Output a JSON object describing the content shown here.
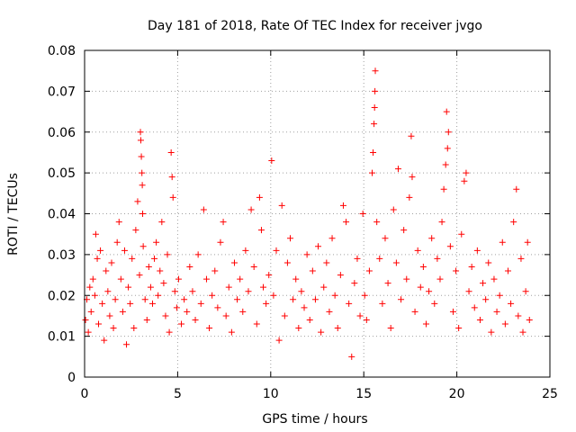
{
  "chart_data": {
    "type": "scatter",
    "title": "Day 181 of 2018, Rate Of TEC Index for receiver jvgo",
    "xlabel": "GPS time / hours",
    "ylabel": "ROTI / TECUs",
    "xlim": [
      0,
      25
    ],
    "ylim": [
      0,
      0.08
    ],
    "x_ticks": [
      0,
      5,
      10,
      15,
      20,
      25
    ],
    "x_tick_labels": [
      "0",
      "5",
      "10",
      "15",
      "20",
      "25"
    ],
    "y_ticks": [
      0,
      0.01,
      0.02,
      0.03,
      0.04,
      0.05,
      0.06,
      0.07,
      0.08
    ],
    "y_tick_labels": [
      "0",
      "0.01",
      "0.02",
      "0.03",
      "0.04",
      "0.05",
      "0.06",
      "0.07",
      "0.08"
    ],
    "grid": true,
    "marker": "+",
    "color": "#ff0000",
    "series": [
      {
        "name": "ROTI",
        "points": [
          [
            0.05,
            0.014
          ],
          [
            0.12,
            0.019
          ],
          [
            0.2,
            0.011
          ],
          [
            0.28,
            0.022
          ],
          [
            0.35,
            0.016
          ],
          [
            0.45,
            0.024
          ],
          [
            0.55,
            0.02
          ],
          [
            0.6,
            0.035
          ],
          [
            0.68,
            0.029
          ],
          [
            0.75,
            0.013
          ],
          [
            0.85,
            0.031
          ],
          [
            0.95,
            0.018
          ],
          [
            1.05,
            0.009
          ],
          [
            1.15,
            0.026
          ],
          [
            1.25,
            0.021
          ],
          [
            1.35,
            0.015
          ],
          [
            1.45,
            0.028
          ],
          [
            1.55,
            0.012
          ],
          [
            1.65,
            0.019
          ],
          [
            1.75,
            0.033
          ],
          [
            1.85,
            0.038
          ],
          [
            1.95,
            0.024
          ],
          [
            2.05,
            0.016
          ],
          [
            2.15,
            0.031
          ],
          [
            2.25,
            0.008
          ],
          [
            2.35,
            0.022
          ],
          [
            2.45,
            0.018
          ],
          [
            2.55,
            0.029
          ],
          [
            2.65,
            0.012
          ],
          [
            2.75,
            0.036
          ],
          [
            2.85,
            0.043
          ],
          [
            2.95,
            0.025
          ],
          [
            3.0,
            0.06
          ],
          [
            3.02,
            0.058
          ],
          [
            3.05,
            0.054
          ],
          [
            3.08,
            0.05
          ],
          [
            3.1,
            0.047
          ],
          [
            3.12,
            0.04
          ],
          [
            3.15,
            0.032
          ],
          [
            3.25,
            0.019
          ],
          [
            3.35,
            0.014
          ],
          [
            3.45,
            0.027
          ],
          [
            3.55,
            0.022
          ],
          [
            3.65,
            0.018
          ],
          [
            3.75,
            0.029
          ],
          [
            3.85,
            0.033
          ],
          [
            3.95,
            0.02
          ],
          [
            4.05,
            0.026
          ],
          [
            4.15,
            0.038
          ],
          [
            4.25,
            0.023
          ],
          [
            4.35,
            0.015
          ],
          [
            4.45,
            0.03
          ],
          [
            4.55,
            0.011
          ],
          [
            4.65,
            0.055
          ],
          [
            4.7,
            0.049
          ],
          [
            4.75,
            0.044
          ],
          [
            4.85,
            0.021
          ],
          [
            4.95,
            0.017
          ],
          [
            5.05,
            0.024
          ],
          [
            5.2,
            0.013
          ],
          [
            5.35,
            0.019
          ],
          [
            5.5,
            0.016
          ],
          [
            5.65,
            0.027
          ],
          [
            5.8,
            0.021
          ],
          [
            5.95,
            0.014
          ],
          [
            6.1,
            0.03
          ],
          [
            6.25,
            0.018
          ],
          [
            6.4,
            0.041
          ],
          [
            6.55,
            0.024
          ],
          [
            6.7,
            0.012
          ],
          [
            6.85,
            0.02
          ],
          [
            7.0,
            0.026
          ],
          [
            7.15,
            0.017
          ],
          [
            7.3,
            0.033
          ],
          [
            7.45,
            0.038
          ],
          [
            7.6,
            0.015
          ],
          [
            7.75,
            0.022
          ],
          [
            7.9,
            0.011
          ],
          [
            8.05,
            0.028
          ],
          [
            8.2,
            0.019
          ],
          [
            8.35,
            0.024
          ],
          [
            8.5,
            0.016
          ],
          [
            8.65,
            0.031
          ],
          [
            8.8,
            0.021
          ],
          [
            8.95,
            0.041
          ],
          [
            9.1,
            0.027
          ],
          [
            9.25,
            0.013
          ],
          [
            9.4,
            0.044
          ],
          [
            9.5,
            0.036
          ],
          [
            9.6,
            0.022
          ],
          [
            9.75,
            0.018
          ],
          [
            9.9,
            0.025
          ],
          [
            10.05,
            0.053
          ],
          [
            10.15,
            0.02
          ],
          [
            10.3,
            0.031
          ],
          [
            10.45,
            0.009
          ],
          [
            10.6,
            0.042
          ],
          [
            10.75,
            0.015
          ],
          [
            10.9,
            0.028
          ],
          [
            11.05,
            0.034
          ],
          [
            11.2,
            0.019
          ],
          [
            11.35,
            0.024
          ],
          [
            11.5,
            0.012
          ],
          [
            11.65,
            0.021
          ],
          [
            11.8,
            0.017
          ],
          [
            11.95,
            0.03
          ],
          [
            12.1,
            0.014
          ],
          [
            12.25,
            0.026
          ],
          [
            12.4,
            0.019
          ],
          [
            12.55,
            0.032
          ],
          [
            12.7,
            0.011
          ],
          [
            12.85,
            0.022
          ],
          [
            13.0,
            0.028
          ],
          [
            13.15,
            0.016
          ],
          [
            13.3,
            0.034
          ],
          [
            13.45,
            0.02
          ],
          [
            13.6,
            0.012
          ],
          [
            13.75,
            0.025
          ],
          [
            13.9,
            0.042
          ],
          [
            14.05,
            0.038
          ],
          [
            14.2,
            0.018
          ],
          [
            14.35,
            0.005
          ],
          [
            14.5,
            0.023
          ],
          [
            14.65,
            0.029
          ],
          [
            14.8,
            0.015
          ],
          [
            14.95,
            0.04
          ],
          [
            15.05,
            0.02
          ],
          [
            15.15,
            0.014
          ],
          [
            15.3,
            0.026
          ],
          [
            15.45,
            0.05
          ],
          [
            15.5,
            0.055
          ],
          [
            15.55,
            0.062
          ],
          [
            15.58,
            0.066
          ],
          [
            15.6,
            0.07
          ],
          [
            15.62,
            0.075
          ],
          [
            15.7,
            0.038
          ],
          [
            15.85,
            0.029
          ],
          [
            16.0,
            0.018
          ],
          [
            16.15,
            0.034
          ],
          [
            16.3,
            0.023
          ],
          [
            16.45,
            0.012
          ],
          [
            16.6,
            0.041
          ],
          [
            16.75,
            0.028
          ],
          [
            16.85,
            0.051
          ],
          [
            17.0,
            0.019
          ],
          [
            17.15,
            0.036
          ],
          [
            17.3,
            0.024
          ],
          [
            17.45,
            0.044
          ],
          [
            17.55,
            0.059
          ],
          [
            17.6,
            0.049
          ],
          [
            17.75,
            0.016
          ],
          [
            17.9,
            0.031
          ],
          [
            18.05,
            0.022
          ],
          [
            18.2,
            0.027
          ],
          [
            18.35,
            0.013
          ],
          [
            18.5,
            0.021
          ],
          [
            18.65,
            0.034
          ],
          [
            18.8,
            0.018
          ],
          [
            18.95,
            0.029
          ],
          [
            19.1,
            0.024
          ],
          [
            19.2,
            0.038
          ],
          [
            19.3,
            0.046
          ],
          [
            19.4,
            0.052
          ],
          [
            19.45,
            0.065
          ],
          [
            19.5,
            0.056
          ],
          [
            19.55,
            0.06
          ],
          [
            19.65,
            0.032
          ],
          [
            19.8,
            0.016
          ],
          [
            19.95,
            0.026
          ],
          [
            20.1,
            0.012
          ],
          [
            20.25,
            0.035
          ],
          [
            20.4,
            0.048
          ],
          [
            20.5,
            0.05
          ],
          [
            20.65,
            0.021
          ],
          [
            20.8,
            0.027
          ],
          [
            20.95,
            0.017
          ],
          [
            21.1,
            0.031
          ],
          [
            21.25,
            0.014
          ],
          [
            21.4,
            0.023
          ],
          [
            21.55,
            0.019
          ],
          [
            21.7,
            0.028
          ],
          [
            21.85,
            0.011
          ],
          [
            22.0,
            0.024
          ],
          [
            22.15,
            0.016
          ],
          [
            22.3,
            0.02
          ],
          [
            22.45,
            0.033
          ],
          [
            22.6,
            0.013
          ],
          [
            22.75,
            0.026
          ],
          [
            22.9,
            0.018
          ],
          [
            23.05,
            0.038
          ],
          [
            23.2,
            0.046
          ],
          [
            23.3,
            0.015
          ],
          [
            23.45,
            0.029
          ],
          [
            23.55,
            0.011
          ],
          [
            23.7,
            0.021
          ],
          [
            23.8,
            0.033
          ],
          [
            23.9,
            0.014
          ]
        ]
      }
    ]
  }
}
